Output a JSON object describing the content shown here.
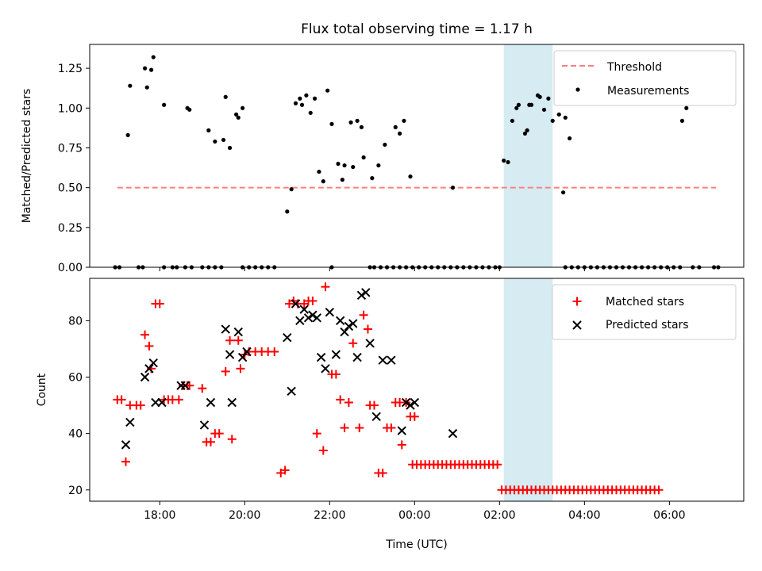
{
  "chart_data": [
    {
      "type": "scatter",
      "title": "Flux total observing time = 1.17 h",
      "ylabel": "Matched/Predicted stars",
      "xlabel": "",
      "x_axis": "hours since 00:00 UTC (18:00 = -6)",
      "xlim": [
        -7.65,
        7.75
      ],
      "ylim": [
        0,
        1.4
      ],
      "yticks": [
        0.0,
        0.25,
        0.5,
        0.75,
        1.0,
        1.25
      ],
      "ytick_labels": [
        "0.00",
        "0.25",
        "0.50",
        "0.75",
        "1.00",
        "1.25"
      ],
      "highlight_span": [
        2.1,
        3.25
      ],
      "highlight_color": "#d3eaf1",
      "legend_position": "upper right",
      "legend": [
        {
          "label": "Threshold",
          "kind": "dashed-line",
          "color": "#ff7f7f"
        },
        {
          "label": "Measurements",
          "kind": "dot",
          "color": "#000000"
        }
      ],
      "threshold": {
        "name": "Threshold",
        "y": 0.5,
        "x_range": [
          -7.0,
          7.1
        ]
      },
      "series": [
        {
          "name": "Measurements",
          "color": "#000000",
          "points": [
            [
              -6.75,
              0.83
            ],
            [
              -6.7,
              1.14
            ],
            [
              -6.35,
              1.25
            ],
            [
              -6.3,
              1.13
            ],
            [
              -6.2,
              1.24
            ],
            [
              -6.15,
              1.32
            ],
            [
              -5.9,
              1.02
            ],
            [
              -5.35,
              1.0
            ],
            [
              -5.3,
              0.99
            ],
            [
              -4.85,
              0.86
            ],
            [
              -4.7,
              0.79
            ],
            [
              -4.5,
              0.8
            ],
            [
              -4.45,
              1.07
            ],
            [
              -4.35,
              0.75
            ],
            [
              -4.2,
              0.96
            ],
            [
              -4.15,
              0.94
            ],
            [
              -4.05,
              1.0
            ],
            [
              -3.0,
              0.35
            ],
            [
              -2.9,
              0.49
            ],
            [
              -2.8,
              1.03
            ],
            [
              -2.7,
              1.06
            ],
            [
              -2.65,
              1.02
            ],
            [
              -2.55,
              1.08
            ],
            [
              -2.45,
              0.97
            ],
            [
              -2.35,
              1.06
            ],
            [
              -2.25,
              0.6
            ],
            [
              -2.15,
              0.54
            ],
            [
              -2.05,
              1.11
            ],
            [
              -1.95,
              0.9
            ],
            [
              -1.8,
              0.65
            ],
            [
              -1.7,
              0.55
            ],
            [
              -1.65,
              0.64
            ],
            [
              -1.5,
              0.91
            ],
            [
              -1.45,
              0.63
            ],
            [
              -1.35,
              0.92
            ],
            [
              -1.25,
              0.88
            ],
            [
              -1.2,
              0.69
            ],
            [
              -1.0,
              0.56
            ],
            [
              -0.85,
              0.64
            ],
            [
              -0.7,
              0.77
            ],
            [
              -0.45,
              0.88
            ],
            [
              -0.35,
              0.84
            ],
            [
              -0.25,
              0.92
            ],
            [
              -0.1,
              0.57
            ],
            [
              0.9,
              0.5
            ],
            [
              2.1,
              0.67
            ],
            [
              2.2,
              0.66
            ],
            [
              2.3,
              0.92
            ],
            [
              2.4,
              1.0
            ],
            [
              2.45,
              1.02
            ],
            [
              2.6,
              0.84
            ],
            [
              2.65,
              0.86
            ],
            [
              2.7,
              1.02
            ],
            [
              2.75,
              1.02
            ],
            [
              2.9,
              1.08
            ],
            [
              2.95,
              1.07
            ],
            [
              3.05,
              0.99
            ],
            [
              3.15,
              1.06
            ],
            [
              3.25,
              0.92
            ],
            [
              3.4,
              0.96
            ],
            [
              3.5,
              0.47
            ],
            [
              3.55,
              0.94
            ],
            [
              3.65,
              0.81
            ],
            [
              6.3,
              0.92
            ],
            [
              6.4,
              1.0
            ]
          ]
        },
        {
          "name": "Measurements (zero)",
          "color": "#000000",
          "x": [
            -7.05,
            -6.95,
            -6.5,
            -6.4,
            -5.9,
            -5.7,
            -5.6,
            -5.4,
            -5.25,
            -5.0,
            -4.85,
            -4.7,
            -4.55,
            -4.05,
            -3.9,
            -3.75,
            -3.6,
            -3.45,
            -3.3,
            -1.95,
            -1.05,
            -0.95,
            -0.8,
            -0.65,
            -0.5,
            -0.35,
            -0.2,
            -0.05,
            0.1,
            0.25,
            0.4,
            0.55,
            0.7,
            0.85,
            1.0,
            1.15,
            1.3,
            1.45,
            1.6,
            1.75,
            1.9,
            2.0,
            3.55,
            3.7,
            3.85,
            4.0,
            4.15,
            4.3,
            4.45,
            4.6,
            4.75,
            4.9,
            5.05,
            5.2,
            5.35,
            5.5,
            5.65,
            5.8,
            5.95,
            6.1,
            6.25,
            6.55,
            6.7,
            7.05,
            7.15
          ],
          "y": 0
        }
      ]
    },
    {
      "type": "scatter",
      "title": "",
      "xlabel": "Time (UTC)",
      "ylabel": "Count",
      "xlim": [
        -7.65,
        7.75
      ],
      "ylim": [
        16,
        95
      ],
      "yticks": [
        20,
        40,
        60,
        80
      ],
      "ytick_labels": [
        "20",
        "40",
        "60",
        "80"
      ],
      "xticks": [
        -6,
        -4,
        -2,
        0,
        2,
        4,
        6
      ],
      "xtick_labels": [
        "18:00",
        "20:00",
        "22:00",
        "00:00",
        "02:00",
        "04:00",
        "06:00"
      ],
      "highlight_span": [
        2.1,
        3.25
      ],
      "highlight_color": "#d3eaf1",
      "legend_position": "upper right",
      "legend": [
        {
          "label": "Matched stars",
          "kind": "plus",
          "color": "#ff0000"
        },
        {
          "label": "Predicted stars",
          "kind": "cross",
          "color": "#000000"
        }
      ],
      "series": [
        {
          "name": "Matched stars",
          "color": "#ff0000",
          "marker": "plus",
          "points": [
            [
              -7.0,
              52
            ],
            [
              -6.9,
              52
            ],
            [
              -6.8,
              30
            ],
            [
              -6.7,
              50
            ],
            [
              -6.55,
              50
            ],
            [
              -6.45,
              50
            ],
            [
              -6.35,
              75
            ],
            [
              -6.25,
              71
            ],
            [
              -6.2,
              63
            ],
            [
              -6.1,
              86
            ],
            [
              -6.0,
              86
            ],
            [
              -5.9,
              52
            ],
            [
              -5.8,
              52
            ],
            [
              -5.7,
              52
            ],
            [
              -5.55,
              52
            ],
            [
              -5.45,
              57
            ],
            [
              -5.35,
              57
            ],
            [
              -5.3,
              57
            ],
            [
              -5.0,
              56
            ],
            [
              -4.9,
              37
            ],
            [
              -4.8,
              37
            ],
            [
              -4.7,
              40
            ],
            [
              -4.6,
              40
            ],
            [
              -4.45,
              62
            ],
            [
              -4.35,
              73
            ],
            [
              -4.3,
              38
            ],
            [
              -4.15,
              73
            ],
            [
              -4.1,
              63
            ],
            [
              -4.0,
              68
            ],
            [
              -3.9,
              69
            ],
            [
              -3.75,
              69
            ],
            [
              -3.6,
              69
            ],
            [
              -3.45,
              69
            ],
            [
              -3.3,
              69
            ],
            [
              -3.15,
              26
            ],
            [
              -3.05,
              27
            ],
            [
              -2.95,
              86
            ],
            [
              -2.85,
              87
            ],
            [
              -2.75,
              86
            ],
            [
              -2.6,
              86
            ],
            [
              -2.5,
              87
            ],
            [
              -2.4,
              87
            ],
            [
              -2.3,
              40
            ],
            [
              -2.15,
              34
            ],
            [
              -2.1,
              92
            ],
            [
              -1.95,
              61
            ],
            [
              -1.85,
              61
            ],
            [
              -1.75,
              52
            ],
            [
              -1.65,
              42
            ],
            [
              -1.55,
              51
            ],
            [
              -1.45,
              72
            ],
            [
              -1.3,
              42
            ],
            [
              -1.2,
              82
            ],
            [
              -1.1,
              77
            ],
            [
              -1.05,
              50
            ],
            [
              -0.95,
              50
            ],
            [
              -0.85,
              26
            ],
            [
              -0.75,
              26
            ],
            [
              -0.65,
              42
            ],
            [
              -0.55,
              42
            ],
            [
              -0.45,
              51
            ],
            [
              -0.35,
              51
            ],
            [
              -0.3,
              36
            ],
            [
              -0.2,
              51
            ],
            [
              -0.1,
              46
            ],
            [
              0.0,
              46
            ],
            [
              -0.05,
              29
            ],
            [
              0.05,
              29
            ],
            [
              0.15,
              29
            ],
            [
              0.25,
              29
            ],
            [
              0.35,
              29
            ],
            [
              0.45,
              29
            ],
            [
              0.55,
              29
            ],
            [
              0.65,
              29
            ],
            [
              0.75,
              29
            ],
            [
              0.85,
              29
            ],
            [
              0.95,
              29
            ],
            [
              1.05,
              29
            ],
            [
              1.15,
              29
            ],
            [
              1.25,
              29
            ],
            [
              1.35,
              29
            ],
            [
              1.45,
              29
            ],
            [
              1.55,
              29
            ],
            [
              1.65,
              29
            ],
            [
              1.75,
              29
            ],
            [
              1.85,
              29
            ],
            [
              1.95,
              29
            ],
            [
              2.05,
              20
            ],
            [
              2.15,
              20
            ],
            [
              2.25,
              20
            ],
            [
              2.35,
              20
            ],
            [
              2.45,
              20
            ],
            [
              2.55,
              20
            ],
            [
              2.65,
              20
            ],
            [
              2.75,
              20
            ],
            [
              2.85,
              20
            ],
            [
              2.95,
              20
            ],
            [
              3.05,
              20
            ],
            [
              3.15,
              20
            ],
            [
              3.25,
              20
            ],
            [
              3.35,
              20
            ],
            [
              3.45,
              20
            ],
            [
              3.55,
              20
            ],
            [
              3.65,
              20
            ],
            [
              3.75,
              20
            ],
            [
              3.85,
              20
            ],
            [
              3.95,
              20
            ],
            [
              4.05,
              20
            ],
            [
              4.15,
              20
            ],
            [
              4.25,
              20
            ],
            [
              4.35,
              20
            ],
            [
              4.45,
              20
            ],
            [
              4.55,
              20
            ],
            [
              4.65,
              20
            ],
            [
              4.75,
              20
            ],
            [
              4.85,
              20
            ],
            [
              4.95,
              20
            ],
            [
              5.05,
              20
            ],
            [
              5.15,
              20
            ],
            [
              5.25,
              20
            ],
            [
              5.35,
              20
            ],
            [
              5.45,
              20
            ],
            [
              5.55,
              20
            ],
            [
              5.65,
              20
            ],
            [
              5.75,
              20
            ]
          ]
        },
        {
          "name": "Predicted stars",
          "color": "#000000",
          "marker": "cross",
          "points": [
            [
              -6.8,
              36
            ],
            [
              -6.7,
              44
            ],
            [
              -6.35,
              60
            ],
            [
              -6.25,
              63
            ],
            [
              -6.15,
              65
            ],
            [
              -6.1,
              51
            ],
            [
              -5.95,
              51
            ],
            [
              -5.5,
              57
            ],
            [
              -5.4,
              57
            ],
            [
              -4.95,
              43
            ],
            [
              -4.8,
              51
            ],
            [
              -4.45,
              77
            ],
            [
              -4.35,
              68
            ],
            [
              -4.3,
              51
            ],
            [
              -4.15,
              76
            ],
            [
              -4.05,
              67
            ],
            [
              -3.95,
              69
            ],
            [
              -3.0,
              74
            ],
            [
              -2.9,
              55
            ],
            [
              -2.8,
              86
            ],
            [
              -2.7,
              80
            ],
            [
              -2.6,
              84
            ],
            [
              -2.5,
              81
            ],
            [
              -2.4,
              82
            ],
            [
              -2.3,
              81
            ],
            [
              -2.2,
              67
            ],
            [
              -2.1,
              63
            ],
            [
              -2.0,
              83
            ],
            [
              -1.85,
              68
            ],
            [
              -1.75,
              80
            ],
            [
              -1.65,
              76
            ],
            [
              -1.55,
              78
            ],
            [
              -1.45,
              79
            ],
            [
              -1.35,
              67
            ],
            [
              -1.25,
              89
            ],
            [
              -1.15,
              90
            ],
            [
              -1.05,
              72
            ],
            [
              -0.9,
              46
            ],
            [
              -0.75,
              66
            ],
            [
              -0.55,
              66
            ],
            [
              -0.3,
              41
            ],
            [
              -0.2,
              51
            ],
            [
              -0.1,
              50
            ],
            [
              0.0,
              51
            ],
            [
              0.9,
              40
            ]
          ]
        }
      ]
    }
  ]
}
